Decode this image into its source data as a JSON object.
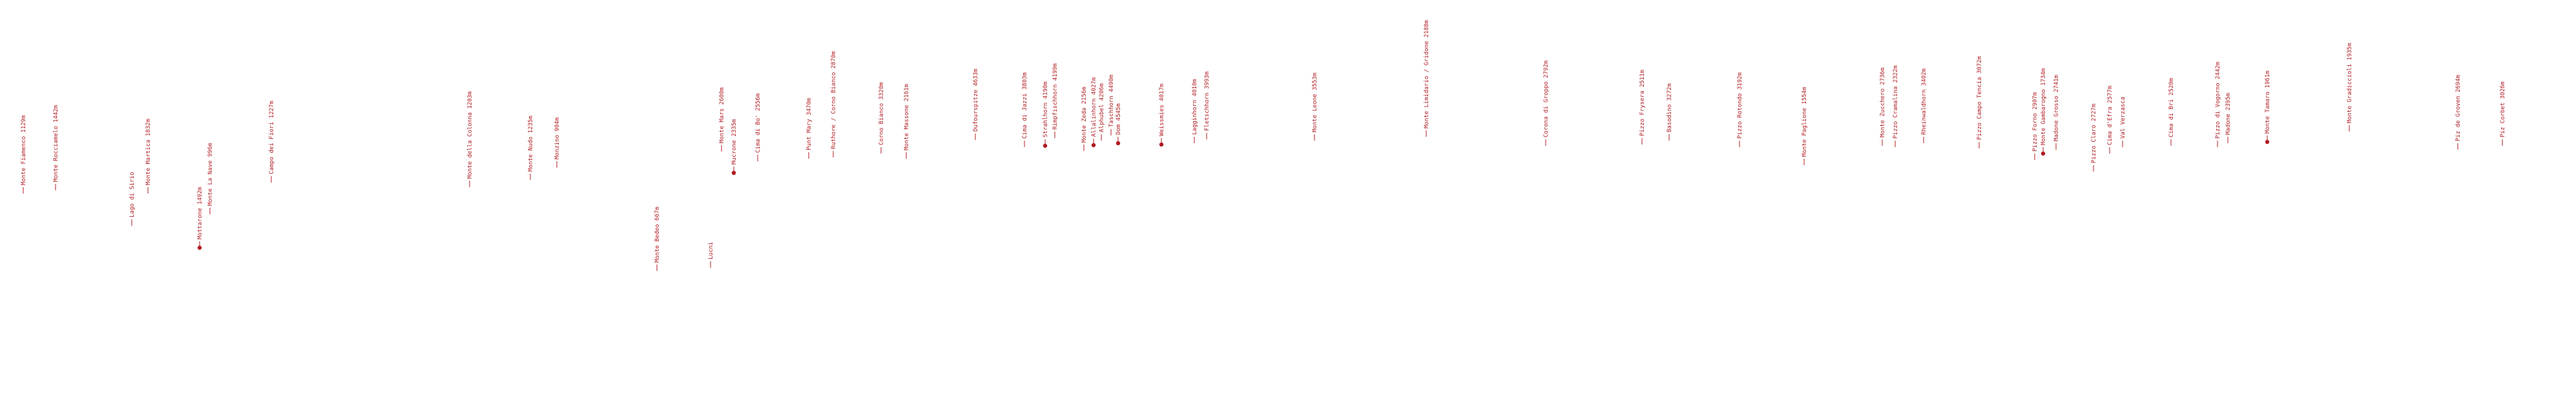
{
  "colors": {
    "label": "#b01c22",
    "background": "#ffffff"
  },
  "peaks": [
    {
      "label": "Monte Fiamenco 1129m",
      "dot": false
    },
    {
      "label": "Monte Rocciamelo 1442m",
      "dot": false
    },
    {
      "label": "Lago di Sirio",
      "dot": false
    },
    {
      "label": "Monte Martica 1032m",
      "dot": false
    },
    {
      "label": "Mottarone 1492m",
      "dot": true
    },
    {
      "label": "Monte La Nave 996m",
      "dot": false
    },
    {
      "label": "Campo dei Fiori 1227m",
      "dot": false
    },
    {
      "label": "Monte della Colonna 1203m",
      "dot": false
    },
    {
      "label": "Monte Nudo 1235m",
      "dot": false
    },
    {
      "label": "Monzino 904m",
      "dot": false
    },
    {
      "label": "Monte Bedeo 667m",
      "dot": false
    },
    {
      "label": "Lucni",
      "dot": false
    },
    {
      "label": "Monte Mars 2600m",
      "dot": false
    },
    {
      "label": "Mucrone 2335m",
      "dot": true
    },
    {
      "label": "Cima di Bo' 2556m",
      "dot": false
    },
    {
      "label": "Punt Mary 3470m",
      "dot": false
    },
    {
      "label": "Ruthore / Corno Bianco 2870m",
      "dot": false
    },
    {
      "label": "Corno Bianco 3320m",
      "dot": false
    },
    {
      "label": "Monte Massone 2161m",
      "dot": false
    },
    {
      "label": "Dufourspitze 4633m",
      "dot": false
    },
    {
      "label": "Cima di Jazzi 3803m",
      "dot": false
    },
    {
      "label": "Strahlhorn 4190m",
      "dot": true
    },
    {
      "label": "Rimpfischhorn 4199m",
      "dot": false
    },
    {
      "label": "Monte Zeda 2156m",
      "dot": false
    },
    {
      "label": "Allalinhorn 4027m",
      "dot": true
    },
    {
      "label": "Alphubel 4206m",
      "dot": false
    },
    {
      "label": "Dom 4545m",
      "dot": true
    },
    {
      "label": "Taschhorn 4490m",
      "dot": false
    },
    {
      "label": "Weissmies 4017m",
      "dot": true
    },
    {
      "label": "Lagginhorn 4010m",
      "dot": false
    },
    {
      "label": "Fletschhorn 3993m",
      "dot": false
    },
    {
      "label": "Monte Leone 3553m",
      "dot": false
    },
    {
      "label": "Monte Limidario / Gridone 2188m",
      "dot": false
    },
    {
      "label": "Corona di Groppo 2792m",
      "dot": false
    },
    {
      "label": "Pizzo Frysera 2511m",
      "dot": false
    },
    {
      "label": "Basodino 3272m",
      "dot": false
    },
    {
      "label": "Pizzo Rotondo 3192m",
      "dot": false
    },
    {
      "label": "Monte Paglione 1554m",
      "dot": false
    },
    {
      "label": "Monte Zucchero 2736m",
      "dot": false
    },
    {
      "label": "Pizzo Cramalina 2322m",
      "dot": false
    },
    {
      "label": "Rheinwaldhorn 3402m",
      "dot": false
    },
    {
      "label": "Pizzo Campo Tencia 3072m",
      "dot": false
    },
    {
      "label": "Pizzo Forno 2907m",
      "dot": false
    },
    {
      "label": "Monte Gambarogno 1734m",
      "dot": true
    },
    {
      "label": "Madone Grosso 2741m",
      "dot": false
    },
    {
      "label": "Pizzo Claro 2727m",
      "dot": false
    },
    {
      "label": "Cima d'Efra 2577m",
      "dot": false
    },
    {
      "label": "Val Verzasca",
      "dot": false
    },
    {
      "label": "Cima di Bri 2520m",
      "dot": false
    },
    {
      "label": "Pizzo di Vogorno 2442m",
      "dot": false
    },
    {
      "label": "Madone 2395m",
      "dot": false
    },
    {
      "label": "Monte Tamaro 1961m",
      "dot": true
    },
    {
      "label": "Monte Gradiccioli 1935m",
      "dot": false
    },
    {
      "label": "Piz de Groven 2694m",
      "dot": false
    },
    {
      "label": "Piz Corbet 3026m",
      "dot": false
    }
  ]
}
